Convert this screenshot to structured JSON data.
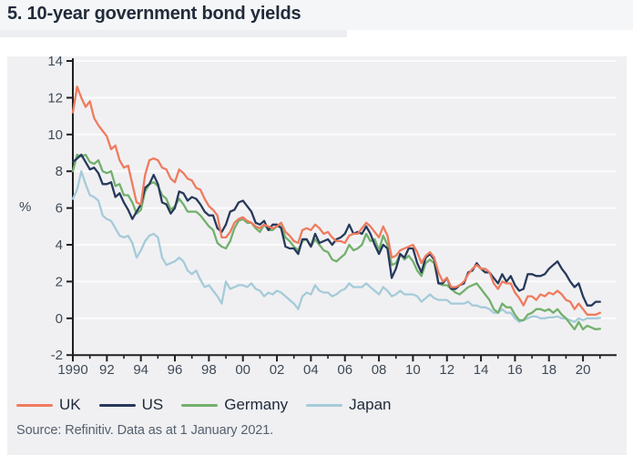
{
  "header": {
    "title": "5. 10-year government bond yields"
  },
  "footer": {
    "source": "Source: Refinitiv. Data as at 1 January 2021."
  },
  "colors": {
    "header_band": "#f5f6f8",
    "title_underline": "#eceef1",
    "panel_background": "#f0f0f2",
    "title_text": "#222b3a"
  },
  "chart_data": {
    "type": "line",
    "title": "5. 10-year government bond yields",
    "xlabel": "",
    "ylabel": "%",
    "ylim": [
      -2,
      14
    ],
    "xlim": [
      1990,
      2022
    ],
    "x_start": 1990,
    "x_step": 0.25,
    "grid": "horizontal only, white lines at every 2 units",
    "legend_position": "bottom",
    "axis_color": "#1f1f1f",
    "grid_color": "#fbfbfc",
    "tick_label_color": "#3f4a57",
    "y_ticks": [
      14,
      12,
      10,
      8,
      6,
      4,
      2,
      0,
      -2
    ],
    "y_gridlines": [
      14,
      12,
      10,
      8,
      6,
      4,
      2,
      0
    ],
    "x_ticks": [
      [
        1990,
        "1990"
      ],
      [
        1992,
        "92"
      ],
      [
        1994,
        "94"
      ],
      [
        1996,
        "96"
      ],
      [
        1998,
        "98"
      ],
      [
        2000,
        "00"
      ],
      [
        2002,
        "02"
      ],
      [
        2004,
        "04"
      ],
      [
        2006,
        "06"
      ],
      [
        2008,
        "08"
      ],
      [
        2010,
        "10"
      ],
      [
        2012,
        "12"
      ],
      [
        2014,
        "14"
      ],
      [
        2016,
        "16"
      ],
      [
        2018,
        "18"
      ],
      [
        2020,
        "20"
      ]
    ],
    "x_minor_tick_years": [
      1990,
      2021
    ],
    "series": [
      {
        "name": "UK",
        "color": "#ef7b5e",
        "values": [
          11.2,
          12.6,
          12.0,
          11.5,
          11.8,
          10.9,
          10.5,
          10.2,
          9.9,
          9.2,
          9.4,
          8.6,
          8.2,
          8.3,
          7.3,
          6.3,
          6.2,
          7.8,
          8.6,
          8.7,
          8.6,
          8.2,
          8.1,
          7.6,
          7.4,
          8.1,
          7.9,
          7.6,
          7.5,
          7.1,
          7.0,
          6.5,
          6.1,
          5.9,
          5.6,
          4.4,
          4.4,
          4.7,
          5.2,
          5.4,
          5.5,
          5.3,
          5.2,
          5.0,
          4.9,
          5.1,
          5.0,
          4.9,
          5.0,
          5.2,
          4.7,
          4.5,
          4.2,
          4.1,
          4.8,
          4.9,
          4.8,
          5.1,
          4.9,
          4.6,
          4.7,
          4.4,
          4.2,
          4.2,
          4.1,
          4.5,
          4.6,
          4.6,
          4.9,
          5.2,
          5.0,
          4.7,
          4.4,
          5.0,
          4.5,
          3.3,
          3.4,
          3.7,
          3.8,
          3.9,
          4.0,
          3.6,
          3.0,
          3.4,
          3.6,
          3.3,
          2.5,
          2.0,
          2.2,
          1.7,
          1.7,
          1.8,
          2.0,
          2.4,
          2.7,
          2.9,
          2.7,
          2.7,
          2.5,
          1.9,
          1.6,
          2.0,
          1.9,
          1.9,
          1.4,
          1.1,
          0.7,
          1.2,
          1.2,
          1.0,
          1.3,
          1.2,
          1.4,
          1.3,
          1.5,
          1.3,
          1.0,
          0.9,
          0.5,
          0.8,
          0.5,
          0.2,
          0.2,
          0.2,
          0.3
        ]
      },
      {
        "name": "US",
        "color": "#27395b",
        "values": [
          8.5,
          8.7,
          8.9,
          8.5,
          8.1,
          8.2,
          7.9,
          7.3,
          7.3,
          7.4,
          6.6,
          6.8,
          6.3,
          5.9,
          5.4,
          5.8,
          6.2,
          7.1,
          7.3,
          7.8,
          7.3,
          6.3,
          6.2,
          5.7,
          6.0,
          6.9,
          6.8,
          6.4,
          6.6,
          6.5,
          6.2,
          5.8,
          5.6,
          5.6,
          4.9,
          4.7,
          5.1,
          5.8,
          5.9,
          6.3,
          6.4,
          6.1,
          5.8,
          5.2,
          5.1,
          5.3,
          4.8,
          5.1,
          5.1,
          4.9,
          3.9,
          3.8,
          3.8,
          3.5,
          4.3,
          4.3,
          3.9,
          4.6,
          4.1,
          4.2,
          4.3,
          4.0,
          4.3,
          4.4,
          4.6,
          5.1,
          4.6,
          4.7,
          4.6,
          5.0,
          4.6,
          4.0,
          3.5,
          4.0,
          3.8,
          2.2,
          2.7,
          3.5,
          3.3,
          3.8,
          3.8,
          3.0,
          2.5,
          3.3,
          3.5,
          3.2,
          1.9,
          1.9,
          2.2,
          1.6,
          1.6,
          1.8,
          1.9,
          2.5,
          2.6,
          3.0,
          2.7,
          2.5,
          2.5,
          2.2,
          1.9,
          2.4,
          2.0,
          2.3,
          1.8,
          1.5,
          1.6,
          2.4,
          2.4,
          2.3,
          2.3,
          2.4,
          2.7,
          2.9,
          3.1,
          2.7,
          2.4,
          2.0,
          1.7,
          1.9,
          1.2,
          0.7,
          0.7,
          0.9,
          0.9
        ]
      },
      {
        "name": "Germany",
        "color": "#72b06c",
        "values": [
          8.0,
          8.9,
          8.8,
          8.9,
          8.5,
          8.4,
          8.6,
          8.0,
          7.9,
          8.0,
          7.2,
          7.3,
          6.7,
          6.7,
          6.3,
          5.7,
          5.9,
          6.9,
          7.3,
          7.4,
          7.2,
          6.7,
          6.5,
          5.9,
          6.1,
          6.5,
          6.2,
          5.8,
          5.8,
          5.8,
          5.6,
          5.3,
          5.0,
          4.8,
          4.1,
          3.9,
          3.8,
          4.2,
          4.9,
          5.3,
          5.4,
          5.2,
          5.2,
          4.9,
          4.7,
          5.1,
          4.8,
          4.8,
          5.0,
          5.0,
          4.4,
          4.2,
          3.9,
          3.7,
          4.2,
          4.3,
          3.9,
          4.3,
          4.0,
          3.7,
          3.6,
          3.2,
          3.1,
          3.3,
          3.5,
          4.0,
          3.7,
          3.8,
          4.0,
          4.6,
          4.2,
          4.3,
          3.7,
          4.5,
          4.0,
          2.9,
          3.0,
          3.5,
          3.2,
          3.4,
          3.1,
          2.6,
          2.3,
          3.0,
          3.2,
          3.0,
          1.9,
          1.8,
          1.8,
          1.6,
          1.4,
          1.3,
          1.5,
          1.7,
          1.8,
          1.9,
          1.6,
          1.3,
          1.0,
          0.5,
          0.3,
          0.8,
          0.6,
          0.6,
          0.2,
          -0.1,
          -0.1,
          0.2,
          0.3,
          0.5,
          0.5,
          0.4,
          0.5,
          0.3,
          0.5,
          0.2,
          0.0,
          -0.3,
          -0.6,
          -0.2,
          -0.6,
          -0.4,
          -0.5,
          -0.6,
          -0.57
        ]
      },
      {
        "name": "Japan",
        "color": "#a5cbd9",
        "values": [
          6.5,
          7.0,
          8.0,
          7.3,
          6.7,
          6.6,
          6.4,
          5.6,
          5.4,
          5.3,
          4.9,
          4.5,
          4.4,
          4.5,
          4.1,
          3.3,
          3.7,
          4.2,
          4.5,
          4.6,
          4.4,
          3.3,
          2.9,
          3.0,
          3.1,
          3.3,
          3.1,
          2.6,
          2.4,
          2.6,
          2.1,
          1.7,
          1.8,
          1.5,
          1.2,
          0.8,
          2.0,
          1.6,
          1.7,
          1.8,
          1.8,
          1.7,
          1.9,
          1.6,
          1.5,
          1.2,
          1.4,
          1.3,
          1.5,
          1.4,
          1.2,
          1.0,
          0.8,
          0.5,
          1.2,
          1.4,
          1.3,
          1.8,
          1.5,
          1.4,
          1.4,
          1.2,
          1.3,
          1.5,
          1.6,
          1.9,
          1.7,
          1.7,
          1.7,
          1.9,
          1.7,
          1.5,
          1.3,
          1.7,
          1.5,
          1.2,
          1.3,
          1.5,
          1.3,
          1.3,
          1.3,
          1.2,
          0.9,
          1.1,
          1.3,
          1.1,
          1.0,
          1.0,
          1.0,
          0.8,
          0.8,
          0.8,
          0.8,
          0.9,
          0.7,
          0.7,
          0.6,
          0.6,
          0.5,
          0.3,
          0.3,
          0.5,
          0.3,
          0.3,
          0.0,
          -0.2,
          -0.1,
          0.0,
          0.1,
          0.1,
          0.0,
          0.0,
          0.05,
          0.05,
          0.1,
          0.0,
          0.0,
          -0.1,
          -0.2,
          0.0,
          -0.1,
          0.0,
          0.0,
          0.0,
          0.02
        ]
      }
    ]
  }
}
